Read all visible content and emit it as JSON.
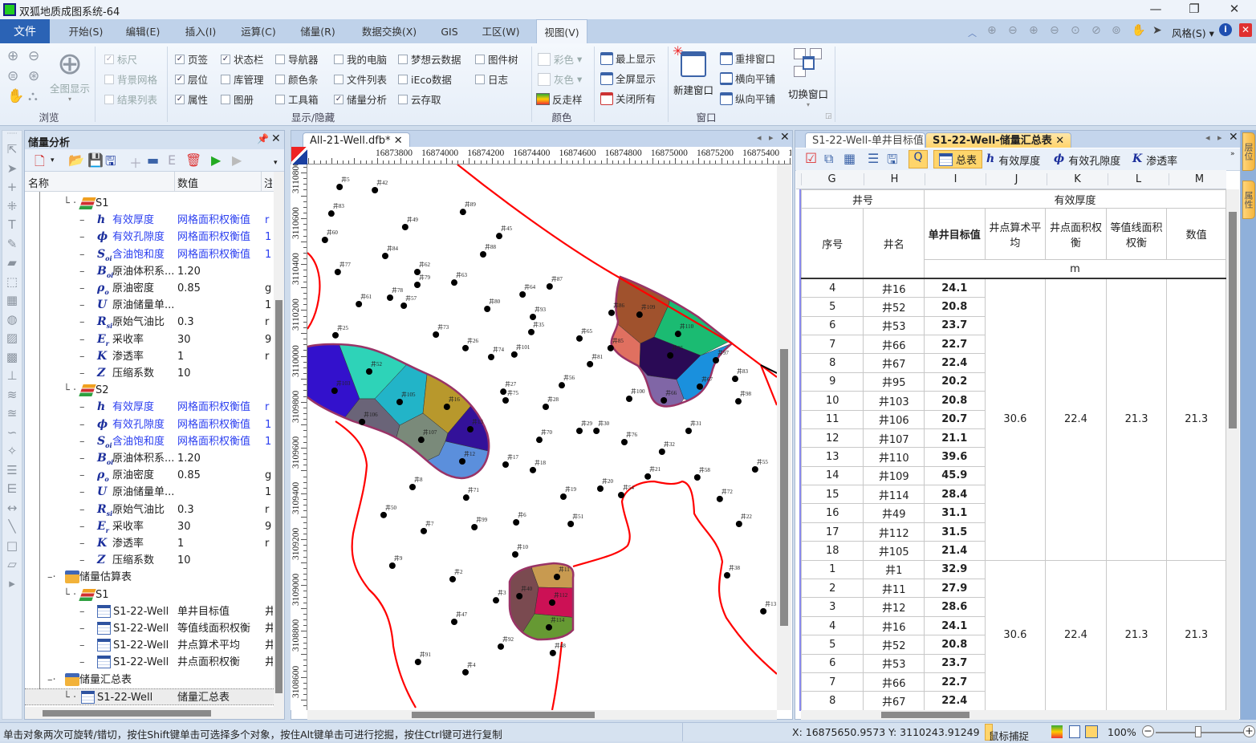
{
  "app": {
    "title": "双狐地质成图系统-64"
  },
  "window_controls": {
    "minimize": "—",
    "restore": "❐",
    "close": "✕"
  },
  "menu": {
    "tabs": [
      "文件",
      "开始(S)",
      "编辑(E)",
      "插入(I)",
      "运算(C)",
      "储量(R)",
      "数据交换(X)",
      "GIS",
      "工区(W)",
      "视图(V)"
    ],
    "active": "视图(V)",
    "style_label": "风格(S)"
  },
  "ribbon": {
    "browse": {
      "full_view": "全图显示",
      "group": "浏览"
    },
    "display": {
      "group": "显示/隐藏",
      "items": [
        {
          "label": "标尺",
          "checked": true,
          "disabled": true
        },
        {
          "label": "背景网格",
          "checked": false,
          "disabled": true
        },
        {
          "label": "结果列表",
          "checked": false,
          "disabled": true
        },
        {
          "label": "页签",
          "checked": true
        },
        {
          "label": "层位",
          "checked": true
        },
        {
          "label": "属性",
          "checked": true
        },
        {
          "label": "状态栏",
          "checked": true
        },
        {
          "label": "库管理",
          "checked": false
        },
        {
          "label": "图册",
          "checked": false
        },
        {
          "label": "导航器",
          "checked": false
        },
        {
          "label": "颜色条",
          "checked": false
        },
        {
          "label": "工具箱",
          "checked": false
        },
        {
          "label": "我的电脑",
          "checked": false
        },
        {
          "label": "文件列表",
          "checked": false
        },
        {
          "label": "储量分析",
          "checked": true
        },
        {
          "label": "梦想云数据",
          "checked": false
        },
        {
          "label": "iEco数据",
          "checked": false
        },
        {
          "label": "云存取",
          "checked": false
        },
        {
          "label": "图件树",
          "checked": false
        },
        {
          "label": "日志",
          "checked": false
        }
      ]
    },
    "color": {
      "group": "颜色",
      "color_label": "彩色",
      "gray_label": "灰色",
      "antialias": "反走样"
    },
    "window": {
      "group": "窗口",
      "top_most": "最上显示",
      "full_screen": "全屏显示",
      "close_all": "关闭所有",
      "new_window": "新建窗口",
      "rearrange": "重排窗口",
      "tile_h": "横向平铺",
      "tile_v": "纵向平铺",
      "switch": "切换窗口"
    }
  },
  "left_panel": {
    "title": "储量分析",
    "columns": [
      "名称",
      "数值",
      "注"
    ],
    "tree": [
      {
        "level": 1,
        "icon": "layer",
        "label": "S1"
      },
      {
        "level": 2,
        "sym": "h",
        "label": "有效厚度",
        "value": "网格面积权衡值",
        "extra": "r",
        "blue": true
      },
      {
        "level": 2,
        "sym": "ϕ",
        "label": "有效孔隙度",
        "value": "网格面积权衡值",
        "extra": "1",
        "blue": true
      },
      {
        "level": 2,
        "sym": "S",
        "sub": "oi",
        "label": "含油饱和度",
        "value": "网格面积权衡值",
        "extra": "1",
        "blue": true
      },
      {
        "level": 2,
        "sym": "B",
        "sub": "oi",
        "label": "原油体积系...",
        "value": "1.20"
      },
      {
        "level": 2,
        "sym": "ρ",
        "sub": "o",
        "label": "原油密度",
        "value": "0.85",
        "extra": "g"
      },
      {
        "level": 2,
        "sym": "U",
        "label": "原油储量单...",
        "extra": "1"
      },
      {
        "level": 2,
        "sym": "R",
        "sub": "si",
        "label": "原始气油比",
        "value": "0.3",
        "extra": "r"
      },
      {
        "level": 2,
        "sym": "E",
        "sub": "r",
        "label": "采收率",
        "value": "30",
        "extra": "9"
      },
      {
        "level": 2,
        "sym": "K",
        "label": "渗透率",
        "value": "1",
        "extra": "r"
      },
      {
        "level": 2,
        "sym": "Z",
        "label": "压缩系数",
        "value": "10"
      },
      {
        "level": 1,
        "icon": "layer",
        "label": "S2"
      },
      {
        "level": 2,
        "sym": "h",
        "label": "有效厚度",
        "value": "网格面积权衡值",
        "extra": "r",
        "blue": true
      },
      {
        "level": 2,
        "sym": "ϕ",
        "label": "有效孔隙度",
        "value": "网格面积权衡值",
        "extra": "1",
        "blue": true
      },
      {
        "level": 2,
        "sym": "S",
        "sub": "oi",
        "label": "含油饱和度",
        "value": "网格面积权衡值",
        "extra": "1",
        "blue": true
      },
      {
        "level": 2,
        "sym": "B",
        "sub": "oi",
        "label": "原油体积系...",
        "value": "1.20"
      },
      {
        "level": 2,
        "sym": "ρ",
        "sub": "o",
        "label": "原油密度",
        "value": "0.85",
        "extra": "g"
      },
      {
        "level": 2,
        "sym": "U",
        "label": "原油储量单...",
        "extra": "1"
      },
      {
        "level": 2,
        "sym": "R",
        "sub": "si",
        "label": "原始气油比",
        "value": "0.3",
        "extra": "r"
      },
      {
        "level": 2,
        "sym": "E",
        "sub": "r",
        "label": "采收率",
        "value": "30",
        "extra": "9"
      },
      {
        "level": 2,
        "sym": "K",
        "label": "渗透率",
        "value": "1",
        "extra": "r"
      },
      {
        "level": 2,
        "sym": "Z",
        "label": "压缩系数",
        "value": "10"
      },
      {
        "level": 0,
        "icon": "folder",
        "label": "储量估算表"
      },
      {
        "level": 1,
        "icon": "layer",
        "label": "S1"
      },
      {
        "level": 2,
        "icon": "table",
        "label": "S1-22-Well",
        "value": "单井目标值",
        "extra": "井"
      },
      {
        "level": 2,
        "icon": "table",
        "label": "S1-22-Well",
        "value": "等值线面积权衡",
        "extra": "井"
      },
      {
        "level": 2,
        "icon": "table",
        "label": "S1-22-Well",
        "value": "井点算术平均",
        "extra": "井"
      },
      {
        "level": 2,
        "icon": "table",
        "label": "S1-22-Well",
        "value": "井点面积权衡",
        "extra": "井"
      },
      {
        "level": 0,
        "icon": "folder",
        "label": "储量汇总表"
      },
      {
        "level": 1,
        "icon": "table",
        "label": "S1-22-Well",
        "value": "储量汇总表",
        "selected": true
      }
    ]
  },
  "map": {
    "tab": "All-21-Well.dfb*",
    "x_ticks": [
      16873800,
      16874000,
      16874200,
      16874400,
      16874600,
      16874800,
      16875000,
      16875200,
      16875400,
      16875600
    ],
    "x_tick_last_label": "168756",
    "y_ticks": [
      3110800,
      3110600,
      3110400,
      3110200,
      3110000,
      3109800,
      3109600,
      3109400,
      3109200,
      3109000,
      3108800,
      3108600
    ],
    "fault_color": "#ff0000",
    "wells": [
      [
        "井5",
        16873636,
        3110737
      ],
      [
        "井42",
        16873790,
        3110723
      ],
      [
        "井83",
        16873600,
        3110621
      ],
      [
        "井89",
        16874174,
        3110628
      ],
      [
        "井49",
        16873922,
        3110562
      ],
      [
        "井45",
        16874332,
        3110523
      ],
      [
        "井60",
        16873572,
        3110506
      ],
      [
        "井84",
        16873835,
        3110436
      ],
      [
        "井88",
        16874262,
        3110443
      ],
      [
        "井77",
        16873628,
        3110366
      ],
      [
        "井62",
        16873975,
        3110366
      ],
      [
        "井79",
        16873975,
        3110310
      ],
      [
        "井63",
        16874136,
        3110320
      ],
      [
        "井64",
        16874434,
        3110268
      ],
      [
        "井87",
        16874552,
        3110303
      ],
      [
        "井78",
        16873856,
        3110254
      ],
      [
        "井57",
        16873916,
        3110219
      ],
      [
        "井61",
        16873720,
        3110226
      ],
      [
        "井80",
        16874280,
        3110205
      ],
      [
        "井93",
        16874479,
        3110170
      ],
      [
        "井35",
        16874472,
        3110104
      ],
      [
        "井25",
        16873618,
        3110090
      ],
      [
        "井73",
        16874056,
        3110093
      ],
      [
        "井26",
        16874185,
        3110034
      ],
      [
        "井74",
        16874297,
        3109995
      ],
      [
        "井101",
        16874398,
        3110006
      ],
      [
        "井65",
        16874682,
        3110076
      ],
      [
        "井81",
        16874728,
        3109964
      ],
      [
        "井52",
        16873765,
        3109932
      ],
      [
        "井103",
        16873614,
        3109848
      ],
      [
        "井105",
        16873898,
        3109799
      ],
      [
        "井16",
        16874104,
        3109778
      ],
      [
        "井106",
        16873734,
        3109712
      ],
      [
        "井107",
        16873992,
        3109634
      ],
      [
        "井13",
        16874206,
        3109680
      ],
      [
        "井12",
        16874171,
        3109540
      ],
      [
        "井27",
        16874350,
        3109844
      ],
      [
        "井75",
        16874360,
        3109806
      ],
      [
        "井56",
        16874605,
        3109872
      ],
      [
        "井28",
        16874535,
        3109778
      ],
      [
        "井100",
        16874899,
        3109813
      ],
      [
        "井86",
        16874822,
        3110188
      ],
      [
        "井109",
        16874944,
        3110180
      ],
      [
        "井110",
        16875112,
        3110096
      ],
      [
        "井95",
        16875078,
        3110002
      ],
      [
        "井67",
        16875207,
        3109866
      ],
      [
        "井66",
        16875050,
        3109806
      ],
      [
        "井85",
        16874818,
        3110034
      ],
      [
        "井97",
        16875277,
        3109981
      ],
      [
        "井83",
        16875361,
        3109900
      ],
      [
        "井98",
        16875375,
        3109802
      ],
      [
        "井29",
        16874682,
        3109673
      ],
      [
        "井30",
        16874756,
        3109673
      ],
      [
        "井31",
        16875158,
        3109673
      ],
      [
        "井70",
        16874507,
        3109634
      ],
      [
        "井76",
        16874878,
        3109624
      ],
      [
        "井32",
        16875042,
        3109582
      ],
      [
        "井17",
        16874360,
        3109526
      ],
      [
        "井18",
        16874479,
        3109502
      ],
      [
        "井8",
        16873954,
        3109428
      ],
      [
        "井71",
        16874188,
        3109382
      ],
      [
        "井21",
        16874980,
        3109474
      ],
      [
        "井58",
        16875196,
        3109470
      ],
      [
        "井55",
        16875448,
        3109505
      ],
      [
        "井20",
        16874773,
        3109421
      ],
      [
        "井19",
        16874612,
        3109386
      ],
      [
        "井54",
        16874864,
        3109393
      ],
      [
        "井72",
        16875294,
        3109376
      ],
      [
        "井50",
        16873828,
        3109306
      ],
      [
        "井7",
        16874003,
        3109236
      ],
      [
        "井99",
        16874224,
        3109253
      ],
      [
        "井6",
        16874406,
        3109274
      ],
      [
        "井51",
        16874644,
        3109267
      ],
      [
        "井22",
        16875378,
        3109267
      ],
      [
        "井9",
        16873866,
        3109085
      ],
      [
        "井10",
        16874402,
        3109134
      ],
      [
        "井2",
        16874129,
        3109026
      ],
      [
        "井3",
        16874318,
        3108934
      ],
      [
        "井40",
        16874420,
        3108952
      ],
      [
        "井11",
        16874584,
        3109036
      ],
      [
        "井112",
        16874563,
        3108924
      ],
      [
        "井114",
        16874549,
        3108816
      ],
      [
        "井38",
        16875326,
        3109043
      ],
      [
        "井47",
        16874136,
        3108840
      ],
      [
        "井92",
        16874339,
        3108732
      ],
      [
        "井48",
        16874566,
        3108704
      ],
      [
        "井13",
        16875484,
        3108886
      ],
      [
        "井91",
        16873978,
        3108665
      ],
      [
        "井4",
        16874185,
        3108620
      ]
    ]
  },
  "table_panel": {
    "tabs": [
      "S1-22-Well-单井目标值",
      "S1-22-Well-储量汇总表"
    ],
    "active_tab": "S1-22-Well-储量汇总表",
    "toolbar": {
      "summary": "总表",
      "thickness": "有效厚度",
      "porosity": "有效孔隙度",
      "permeability": "渗透率",
      "sym_h": "h",
      "sym_phi": "ϕ",
      "sym_k": "K"
    },
    "col_letters": [
      "G",
      "H",
      "I",
      "J",
      "K",
      "L",
      "M"
    ],
    "header": {
      "well_no": "井号",
      "thickness": "有效厚度",
      "seq": "序号",
      "well_name": "井名",
      "single": "单井目标值",
      "arith": "井点算术平均",
      "area_w": "井点面积权衡",
      "contour": "等值线面积权衡",
      "value": "数值",
      "unit": "m"
    },
    "blocks": [
      {
        "rows": [
          [
            "4",
            "井16",
            "24.1"
          ],
          [
            "5",
            "井52",
            "20.8"
          ],
          [
            "6",
            "井53",
            "23.7"
          ],
          [
            "7",
            "井66",
            "22.7"
          ],
          [
            "8",
            "井67",
            "22.4"
          ],
          [
            "9",
            "井95",
            "20.2"
          ],
          [
            "10",
            "井103",
            "20.8"
          ],
          [
            "11",
            "井106",
            "20.7"
          ],
          [
            "12",
            "井107",
            "21.1"
          ],
          [
            "13",
            "井110",
            "39.6"
          ],
          [
            "14",
            "井109",
            "45.9"
          ],
          [
            "15",
            "井114",
            "28.4"
          ],
          [
            "16",
            "井49",
            "31.1"
          ],
          [
            "17",
            "井112",
            "31.5"
          ],
          [
            "18",
            "井105",
            "21.4"
          ]
        ],
        "merged": [
          "30.6",
          "22.4",
          "21.3",
          "21.3"
        ]
      },
      {
        "rows": [
          [
            "1",
            "井1",
            "32.9"
          ],
          [
            "2",
            "井11",
            "27.9"
          ],
          [
            "3",
            "井12",
            "28.6"
          ],
          [
            "4",
            "井16",
            "24.1"
          ],
          [
            "5",
            "井52",
            "20.8"
          ],
          [
            "6",
            "井53",
            "23.7"
          ],
          [
            "7",
            "井66",
            "22.7"
          ],
          [
            "8",
            "井67",
            "22.4"
          ]
        ],
        "merged": [
          "30.6",
          "22.4",
          "21.3",
          "21.3"
        ]
      }
    ]
  },
  "side_tabs": [
    "层位",
    "属性"
  ],
  "status": {
    "hint": "单击对象两次可旋转/错切，按住Shift键单击可选择多个对象，按住Alt键单击可进行挖掘，按住Ctrl键可进行复制",
    "x": "X: 16875650.9573",
    "y": "Y: 3110243.91249",
    "snap": "鼠标捕捉",
    "zoom": "100%"
  },
  "colors": {
    "accent": "#2b63b5",
    "selected_tab": "#ffd36b",
    "blue_text": "#2b3ff0"
  }
}
